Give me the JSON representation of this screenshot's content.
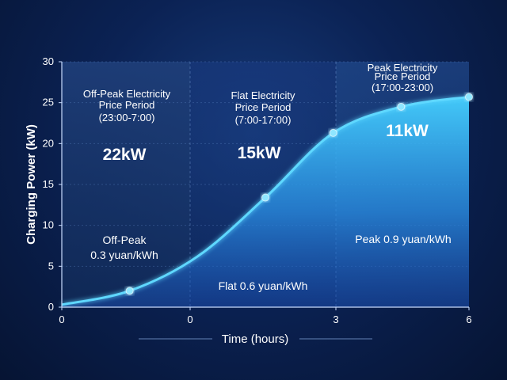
{
  "chart_data": {
    "type": "area",
    "title": "",
    "xlabel": "Time (hours)",
    "ylabel": "Charging Power (kW)",
    "ylim": [
      0,
      30
    ],
    "yticks": [
      "0",
      "5",
      "10",
      "15",
      "20",
      "25",
      "30"
    ],
    "xticks": [
      "0",
      "0",
      "3",
      "6"
    ],
    "grid": true,
    "points": [
      {
        "x": 0,
        "y": 0.3
      },
      {
        "x": 1,
        "y": 2.0
      },
      {
        "x": 2,
        "y": 6.2
      },
      {
        "x": 3,
        "y": 13.4
      },
      {
        "x": 4,
        "y": 21.3
      },
      {
        "x": 5,
        "y": 24.5
      },
      {
        "x": 6,
        "y": 25.7
      }
    ],
    "marked_points": [
      1,
      3,
      4,
      5,
      6
    ],
    "periods": [
      {
        "title_lines": [
          "Off-Peak Electricity",
          "Price Period",
          "(23:00-7:00)"
        ],
        "power": "22kW",
        "price_lines": [
          "Off-Peak",
          "0.3 yuan/kWh"
        ]
      },
      {
        "title_lines": [
          "Flat Electricity",
          "Price Period",
          "(7:00-17:00)"
        ],
        "power": "15kW",
        "price_lines": [
          "Flat 0.6 yuan/kWh"
        ]
      },
      {
        "title_lines": [
          "Peak Electricity",
          "Price Period",
          "(17:00-23:00)"
        ],
        "power": "11kW",
        "price_lines": [
          "Peak 0.9 yuan/kWh"
        ]
      }
    ],
    "colors": {
      "curve": "#5fd8ff",
      "fill_top": "#3ec6f5",
      "fill_bottom": "#1f5fd1",
      "background": "#0b2254",
      "marker": "#8fe6ff"
    }
  }
}
